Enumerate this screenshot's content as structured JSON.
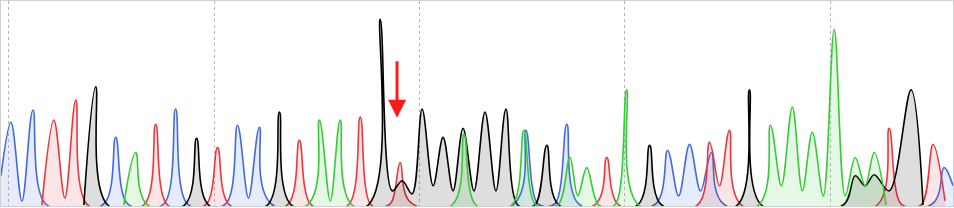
{
  "chart_data": {
    "type": "line",
    "xlim": [
      0,
      954
    ],
    "ylim": [
      0,
      203
    ],
    "xticks": [
      8,
      214,
      419,
      625,
      831
    ],
    "yticks": [],
    "grid": true,
    "tick_labels": false,
    "line_style": "spline",
    "series": [
      {
        "color": "#4169e1",
        "x": [
          0,
          10,
          21,
          32,
          45,
          103,
          115,
          127,
          163,
          175,
          187,
          225,
          237,
          248,
          259,
          271,
          514,
          526,
          538,
          555,
          567,
          579,
          656,
          668,
          679,
          690,
          701,
          712,
          724,
          933,
          945,
          954
        ],
        "values": [
          30,
          83,
          5,
          95,
          2,
          2,
          68,
          2,
          2,
          96,
          2,
          2,
          80,
          8,
          78,
          2,
          2,
          75,
          2,
          2,
          81,
          2,
          2,
          55,
          10,
          61,
          15,
          53,
          2,
          2,
          38,
          20
        ]
      },
      {
        "color": "#e8383d",
        "x": [
          41,
          53,
          64,
          75,
          87,
          143,
          155,
          167,
          205,
          217,
          229,
          287,
          299,
          311,
          348,
          360,
          371,
          390,
          400,
          411,
          595,
          607,
          619,
          698,
          710,
          720,
          730,
          742,
          878,
          890,
          902,
          922,
          934,
          946
        ],
        "values": [
          1,
          85,
          8,
          105,
          1,
          1,
          81,
          1,
          1,
          58,
          1,
          1,
          65,
          1,
          1,
          88,
          1,
          2,
          43,
          3,
          1,
          48,
          1,
          1,
          63,
          20,
          75,
          1,
          1,
          77,
          2,
          1,
          61,
          5
        ]
      },
      {
        "color": "#000000",
        "x": [
          83,
          95,
          107,
          184,
          196,
          208,
          267,
          279,
          291,
          368,
          380,
          392,
          402,
          412,
          422,
          433,
          443,
          453,
          463,
          474,
          485,
          496,
          506,
          518,
          535,
          547,
          559,
          638,
          650,
          662,
          738,
          750,
          762,
          844,
          856,
          866,
          875,
          890,
          912,
          924
        ],
        "values": [
          1,
          118,
          1,
          1,
          67,
          1,
          1,
          93,
          1,
          1,
          185,
          15,
          25,
          12,
          96,
          20,
          68,
          15,
          77,
          15,
          93,
          15,
          96,
          1,
          1,
          60,
          1,
          1,
          60,
          1,
          1,
          115,
          1,
          1,
          30,
          20,
          31,
          15,
          115,
          1
        ]
      },
      {
        "color": "#33cc33",
        "x": [
          123,
          135,
          147,
          307,
          319,
          330,
          340,
          352,
          452,
          464,
          476,
          512,
          524,
          536,
          558,
          570,
          578,
          587,
          599,
          615,
          627,
          639,
          759,
          771,
          782,
          793,
          803,
          813,
          824,
          835,
          846,
          856,
          866,
          875,
          887
        ],
        "values": [
          1,
          53,
          1,
          1,
          85,
          5,
          85,
          1,
          1,
          71,
          1,
          1,
          75,
          1,
          1,
          48,
          10,
          38,
          1,
          1,
          115,
          1,
          1,
          80,
          20,
          98,
          15,
          73,
          10,
          175,
          10,
          48,
          20,
          53,
          1
        ]
      }
    ]
  }
}
